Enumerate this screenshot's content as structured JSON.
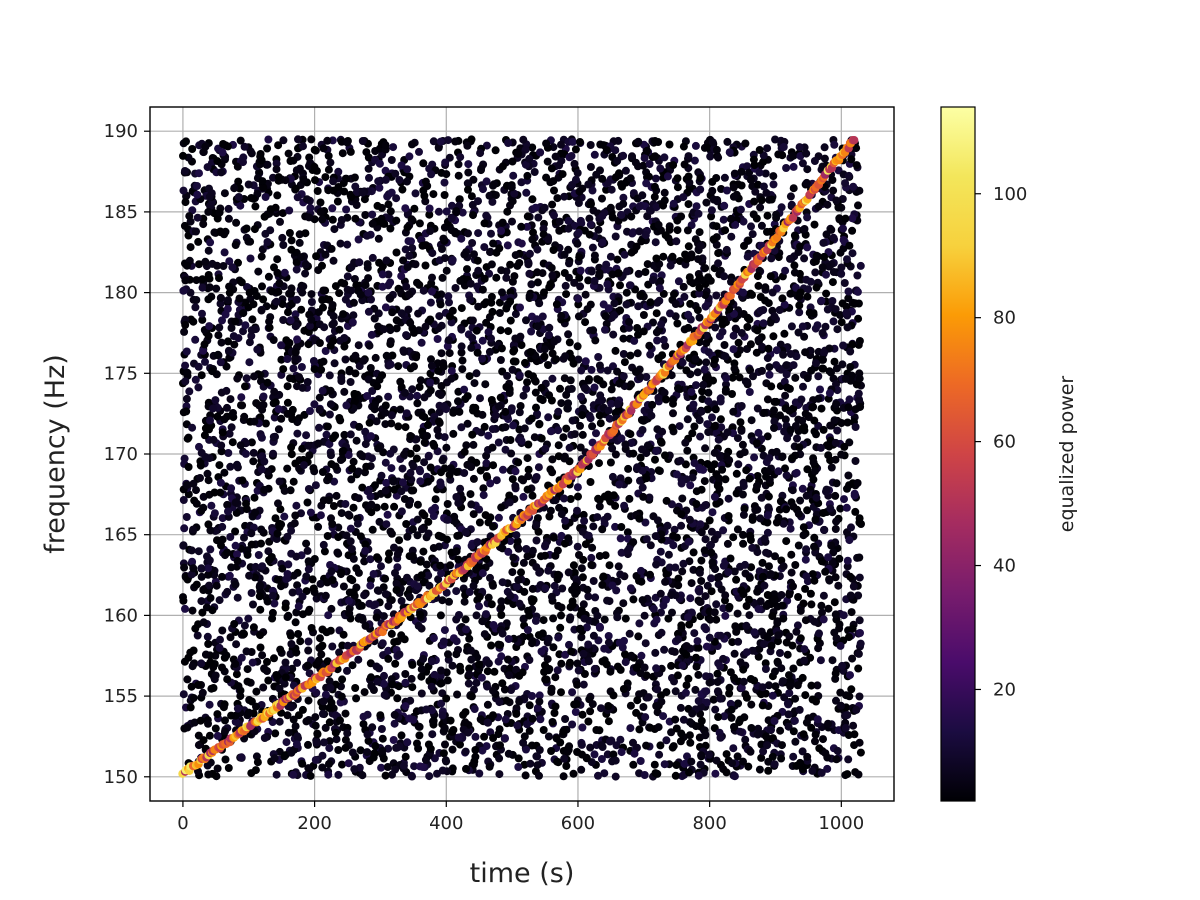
{
  "chart_data": {
    "type": "scatter",
    "title": "",
    "xlabel": "time (s)",
    "ylabel": "frequency (Hz)",
    "xlim": [
      -50,
      1080
    ],
    "ylim": [
      148.5,
      191.5
    ],
    "x_ticks": [
      0,
      200,
      400,
      600,
      800,
      1000
    ],
    "y_ticks": [
      150,
      155,
      160,
      165,
      170,
      175,
      180,
      185,
      190
    ],
    "grid": true,
    "colormap": "inferno",
    "colorbar": {
      "label": "equalized power",
      "range": [
        2,
        114
      ],
      "ticks": [
        20,
        40,
        60,
        80,
        100
      ]
    },
    "background_points": {
      "count": 6500,
      "x_range": [
        0,
        1030
      ],
      "y_range": [
        150,
        189.5
      ],
      "power_range": [
        2,
        14
      ]
    },
    "signal_track": {
      "description_points": [
        {
          "x": 0,
          "y": 150.2
        },
        {
          "x": 200,
          "y": 156.0
        },
        {
          "x": 400,
          "y": 162.0
        },
        {
          "x": 600,
          "y": 169.0
        },
        {
          "x": 800,
          "y": 178.3
        },
        {
          "x": 1020,
          "y": 189.5
        }
      ],
      "power_range": [
        45,
        108
      ]
    }
  }
}
